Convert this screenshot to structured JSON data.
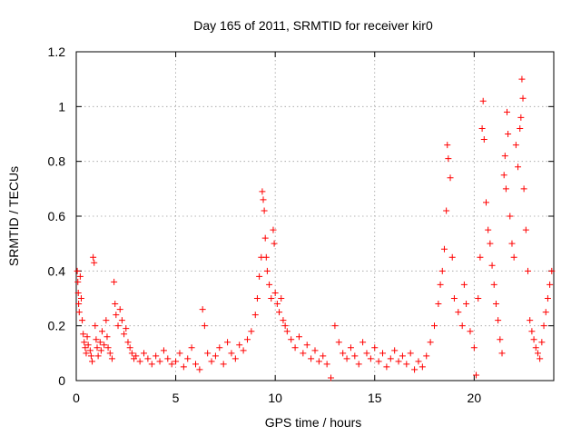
{
  "chart_data": {
    "type": "scatter",
    "title": "Day 165 of 2011, SRMTID for receiver kir0",
    "xlabel": "GPS time / hours",
    "ylabel": "SRMTID / TECUs",
    "xlim": [
      0,
      24
    ],
    "ylim": [
      0,
      1.2
    ],
    "x_ticks": [
      {
        "value": 0,
        "label": "0"
      },
      {
        "value": 5,
        "label": "5"
      },
      {
        "value": 10,
        "label": "10"
      },
      {
        "value": 15,
        "label": "15"
      },
      {
        "value": 20,
        "label": "20"
      }
    ],
    "y_ticks": [
      {
        "value": 0,
        "label": "0"
      },
      {
        "value": 0.2,
        "label": "0.2"
      },
      {
        "value": 0.4,
        "label": "0.4"
      },
      {
        "value": 0.6,
        "label": "0.6"
      },
      {
        "value": 0.8,
        "label": "0.8"
      },
      {
        "value": 1.0,
        "label": "1"
      },
      {
        "value": 1.2,
        "label": "1.2"
      }
    ],
    "grid": true,
    "legend": "none",
    "marker": "plus",
    "series_color": "#ff0000",
    "series": [
      {
        "points": [
          [
            0.05,
            0.4
          ],
          [
            0.08,
            0.36
          ],
          [
            0.1,
            0.32
          ],
          [
            0.12,
            0.28
          ],
          [
            0.15,
            0.25
          ],
          [
            0.2,
            0.38
          ],
          [
            0.25,
            0.3
          ],
          [
            0.3,
            0.22
          ],
          [
            0.35,
            0.17
          ],
          [
            0.4,
            0.14
          ],
          [
            0.45,
            0.12
          ],
          [
            0.5,
            0.1
          ],
          [
            0.55,
            0.16
          ],
          [
            0.6,
            0.13
          ],
          [
            0.7,
            0.11
          ],
          [
            0.75,
            0.09
          ],
          [
            0.8,
            0.07
          ],
          [
            0.85,
            0.45
          ],
          [
            0.9,
            0.43
          ],
          [
            0.95,
            0.2
          ],
          [
            1.0,
            0.15
          ],
          [
            1.05,
            0.12
          ],
          [
            1.1,
            0.09
          ],
          [
            1.2,
            0.14
          ],
          [
            1.25,
            0.11
          ],
          [
            1.3,
            0.18
          ],
          [
            1.4,
            0.13
          ],
          [
            1.5,
            0.22
          ],
          [
            1.55,
            0.16
          ],
          [
            1.6,
            0.12
          ],
          [
            1.7,
            0.1
          ],
          [
            1.8,
            0.08
          ],
          [
            1.9,
            0.36
          ],
          [
            1.95,
            0.28
          ],
          [
            2.0,
            0.24
          ],
          [
            2.1,
            0.2
          ],
          [
            2.2,
            0.26
          ],
          [
            2.3,
            0.22
          ],
          [
            2.4,
            0.17
          ],
          [
            2.5,
            0.19
          ],
          [
            2.6,
            0.14
          ],
          [
            2.7,
            0.12
          ],
          [
            2.8,
            0.1
          ],
          [
            2.9,
            0.08
          ],
          [
            3.0,
            0.09
          ],
          [
            3.2,
            0.07
          ],
          [
            3.4,
            0.1
          ],
          [
            3.6,
            0.08
          ],
          [
            3.8,
            0.06
          ],
          [
            4.0,
            0.09
          ],
          [
            4.2,
            0.07
          ],
          [
            4.4,
            0.11
          ],
          [
            4.6,
            0.08
          ],
          [
            4.8,
            0.06
          ],
          [
            5.0,
            0.07
          ],
          [
            5.2,
            0.1
          ],
          [
            5.4,
            0.05
          ],
          [
            5.6,
            0.08
          ],
          [
            5.8,
            0.12
          ],
          [
            6.0,
            0.06
          ],
          [
            6.2,
            0.04
          ],
          [
            6.35,
            0.26
          ],
          [
            6.45,
            0.2
          ],
          [
            6.6,
            0.1
          ],
          [
            6.8,
            0.07
          ],
          [
            7.0,
            0.09
          ],
          [
            7.2,
            0.12
          ],
          [
            7.4,
            0.06
          ],
          [
            7.6,
            0.14
          ],
          [
            7.8,
            0.1
          ],
          [
            8.0,
            0.08
          ],
          [
            8.2,
            0.13
          ],
          [
            8.4,
            0.11
          ],
          [
            8.6,
            0.15
          ],
          [
            8.8,
            0.18
          ],
          [
            9.0,
            0.24
          ],
          [
            9.1,
            0.3
          ],
          [
            9.2,
            0.38
          ],
          [
            9.3,
            0.45
          ],
          [
            9.35,
            0.69
          ],
          [
            9.4,
            0.66
          ],
          [
            9.45,
            0.62
          ],
          [
            9.5,
            0.52
          ],
          [
            9.55,
            0.45
          ],
          [
            9.6,
            0.4
          ],
          [
            9.7,
            0.35
          ],
          [
            9.8,
            0.3
          ],
          [
            9.9,
            0.55
          ],
          [
            9.95,
            0.5
          ],
          [
            10.0,
            0.32
          ],
          [
            10.1,
            0.28
          ],
          [
            10.2,
            0.25
          ],
          [
            10.3,
            0.3
          ],
          [
            10.4,
            0.22
          ],
          [
            10.5,
            0.2
          ],
          [
            10.6,
            0.18
          ],
          [
            10.8,
            0.15
          ],
          [
            11.0,
            0.12
          ],
          [
            11.2,
            0.16
          ],
          [
            11.4,
            0.1
          ],
          [
            11.6,
            0.13
          ],
          [
            11.8,
            0.08
          ],
          [
            12.0,
            0.11
          ],
          [
            12.2,
            0.07
          ],
          [
            12.4,
            0.09
          ],
          [
            12.6,
            0.06
          ],
          [
            12.8,
            0.01
          ],
          [
            13.0,
            0.2
          ],
          [
            13.2,
            0.14
          ],
          [
            13.4,
            0.1
          ],
          [
            13.6,
            0.08
          ],
          [
            13.8,
            0.12
          ],
          [
            14.0,
            0.09
          ],
          [
            14.2,
            0.06
          ],
          [
            14.4,
            0.14
          ],
          [
            14.6,
            0.1
          ],
          [
            14.8,
            0.08
          ],
          [
            15.0,
            0.12
          ],
          [
            15.2,
            0.07
          ],
          [
            15.4,
            0.1
          ],
          [
            15.6,
            0.05
          ],
          [
            15.8,
            0.08
          ],
          [
            16.0,
            0.11
          ],
          [
            16.2,
            0.07
          ],
          [
            16.4,
            0.09
          ],
          [
            16.6,
            0.06
          ],
          [
            16.8,
            0.1
          ],
          [
            17.0,
            0.04
          ],
          [
            17.2,
            0.07
          ],
          [
            17.4,
            0.05
          ],
          [
            17.6,
            0.09
          ],
          [
            17.8,
            0.14
          ],
          [
            18.0,
            0.2
          ],
          [
            18.2,
            0.28
          ],
          [
            18.3,
            0.35
          ],
          [
            18.4,
            0.4
          ],
          [
            18.5,
            0.48
          ],
          [
            18.6,
            0.62
          ],
          [
            18.65,
            0.86
          ],
          [
            18.7,
            0.81
          ],
          [
            18.8,
            0.74
          ],
          [
            18.9,
            0.45
          ],
          [
            19.0,
            0.3
          ],
          [
            19.2,
            0.25
          ],
          [
            19.4,
            0.2
          ],
          [
            19.5,
            0.35
          ],
          [
            19.6,
            0.28
          ],
          [
            19.8,
            0.18
          ],
          [
            20.0,
            0.12
          ],
          [
            20.1,
            0.02
          ],
          [
            20.2,
            0.3
          ],
          [
            20.3,
            0.45
          ],
          [
            20.4,
            0.92
          ],
          [
            20.45,
            1.02
          ],
          [
            20.5,
            0.88
          ],
          [
            20.6,
            0.65
          ],
          [
            20.7,
            0.55
          ],
          [
            20.8,
            0.5
          ],
          [
            20.9,
            0.42
          ],
          [
            21.0,
            0.35
          ],
          [
            21.1,
            0.28
          ],
          [
            21.2,
            0.22
          ],
          [
            21.3,
            0.15
          ],
          [
            21.4,
            0.1
          ],
          [
            21.5,
            0.75
          ],
          [
            21.55,
            0.82
          ],
          [
            21.6,
            0.7
          ],
          [
            21.65,
            0.98
          ],
          [
            21.7,
            0.9
          ],
          [
            21.8,
            0.6
          ],
          [
            21.9,
            0.5
          ],
          [
            22.0,
            0.45
          ],
          [
            22.1,
            0.86
          ],
          [
            22.2,
            0.78
          ],
          [
            22.3,
            0.92
          ],
          [
            22.35,
            0.96
          ],
          [
            22.4,
            1.1
          ],
          [
            22.45,
            1.03
          ],
          [
            22.5,
            0.7
          ],
          [
            22.6,
            0.55
          ],
          [
            22.7,
            0.4
          ],
          [
            22.8,
            0.22
          ],
          [
            22.9,
            0.18
          ],
          [
            23.0,
            0.15
          ],
          [
            23.1,
            0.12
          ],
          [
            23.2,
            0.1
          ],
          [
            23.3,
            0.08
          ],
          [
            23.4,
            0.14
          ],
          [
            23.5,
            0.2
          ],
          [
            23.6,
            0.25
          ],
          [
            23.7,
            0.3
          ],
          [
            23.8,
            0.35
          ],
          [
            23.9,
            0.4
          ]
        ]
      }
    ]
  }
}
